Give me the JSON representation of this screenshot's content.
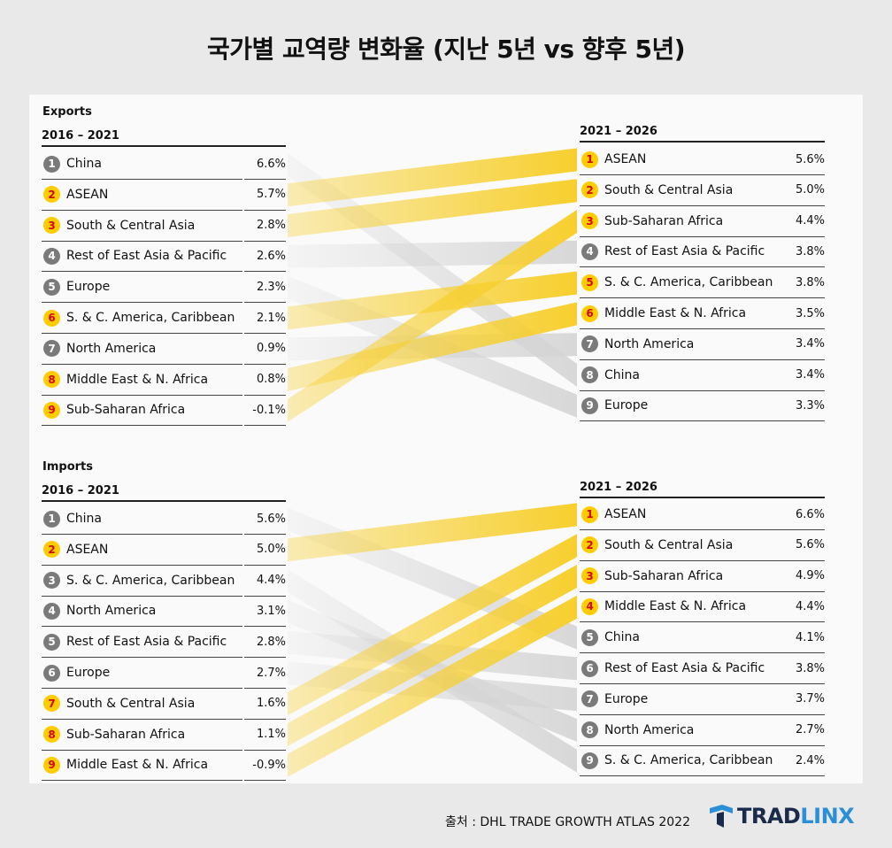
{
  "title": "국가별 교역량 변화율 (지난 5년 vs 향후 5년)",
  "source": "출처 : DHL TRADE GROWTH ATLAS 2022",
  "logo": {
    "part1": "TRAD",
    "part2": "LINX"
  },
  "colors": {
    "highlight": "#ffcc00",
    "highlight_text": "#d40511",
    "muted": "#7a7a7a",
    "band_yellow": "#f7cf2e",
    "band_gray": "#d4d4d4"
  },
  "chart_data": [
    {
      "type": "table",
      "section": "Exports",
      "left_header": "2016 – 2021",
      "right_header": "2021 – 2026",
      "left": [
        {
          "rank": "1",
          "name": "China",
          "value": "6.6%",
          "highlight": false
        },
        {
          "rank": "2",
          "name": "ASEAN",
          "value": "5.7%",
          "highlight": true
        },
        {
          "rank": "3",
          "name": "South & Central Asia",
          "value": "2.8%",
          "highlight": true
        },
        {
          "rank": "4",
          "name": "Rest of East Asia & Pacific",
          "value": "2.6%",
          "highlight": false
        },
        {
          "rank": "5",
          "name": "Europe",
          "value": "2.3%",
          "highlight": false
        },
        {
          "rank": "6",
          "name": "S. & C. America, Caribbean",
          "value": "2.1%",
          "highlight": true
        },
        {
          "rank": "7",
          "name": "North America",
          "value": "0.9%",
          "highlight": false
        },
        {
          "rank": "8",
          "name": "Middle East & N. Africa",
          "value": "0.8%",
          "highlight": true
        },
        {
          "rank": "9",
          "name": "Sub-Saharan Africa",
          "value": "-0.1%",
          "highlight": true
        }
      ],
      "right": [
        {
          "rank": "1",
          "name": "ASEAN",
          "value": "5.6%",
          "highlight": true
        },
        {
          "rank": "2",
          "name": "South & Central Asia",
          "value": "5.0%",
          "highlight": true
        },
        {
          "rank": "3",
          "name": "Sub-Saharan Africa",
          "value": "4.4%",
          "highlight": true
        },
        {
          "rank": "4",
          "name": "Rest of East Asia & Pacific",
          "value": "3.8%",
          "highlight": false
        },
        {
          "rank": "5",
          "name": "S. & C. America, Caribbean",
          "value": "3.8%",
          "highlight": true
        },
        {
          "rank": "6",
          "name": "Middle East & N. Africa",
          "value": "3.5%",
          "highlight": true
        },
        {
          "rank": "7",
          "name": "North America",
          "value": "3.4%",
          "highlight": false
        },
        {
          "rank": "8",
          "name": "China",
          "value": "3.4%",
          "highlight": false
        },
        {
          "rank": "9",
          "name": "Europe",
          "value": "3.3%",
          "highlight": false
        }
      ],
      "links": [
        [
          1,
          8
        ],
        [
          2,
          1
        ],
        [
          3,
          2
        ],
        [
          4,
          4
        ],
        [
          5,
          9
        ],
        [
          6,
          5
        ],
        [
          7,
          7
        ],
        [
          8,
          6
        ],
        [
          9,
          3
        ]
      ]
    },
    {
      "type": "table",
      "section": "Imports",
      "left_header": "2016 – 2021",
      "right_header": "2021 – 2026",
      "left": [
        {
          "rank": "1",
          "name": "China",
          "value": "5.6%",
          "highlight": false
        },
        {
          "rank": "2",
          "name": "ASEAN",
          "value": "5.0%",
          "highlight": true
        },
        {
          "rank": "3",
          "name": "S. & C. America, Caribbean",
          "value": "4.4%",
          "highlight": false
        },
        {
          "rank": "4",
          "name": "North America",
          "value": "3.1%",
          "highlight": false
        },
        {
          "rank": "5",
          "name": "Rest of East Asia & Pacific",
          "value": "2.8%",
          "highlight": false
        },
        {
          "rank": "6",
          "name": "Europe",
          "value": "2.7%",
          "highlight": false
        },
        {
          "rank": "7",
          "name": "South & Central Asia",
          "value": "1.6%",
          "highlight": true
        },
        {
          "rank": "8",
          "name": "Sub-Saharan Africa",
          "value": "1.1%",
          "highlight": true
        },
        {
          "rank": "9",
          "name": "Middle East & N. Africa",
          "value": "-0.9%",
          "highlight": true
        }
      ],
      "right": [
        {
          "rank": "1",
          "name": "ASEAN",
          "value": "6.6%",
          "highlight": true
        },
        {
          "rank": "2",
          "name": "South & Central Asia",
          "value": "5.6%",
          "highlight": true
        },
        {
          "rank": "3",
          "name": "Sub-Saharan Africa",
          "value": "4.9%",
          "highlight": true
        },
        {
          "rank": "4",
          "name": "Middle East & N. Africa",
          "value": "4.4%",
          "highlight": true
        },
        {
          "rank": "5",
          "name": "China",
          "value": "4.1%",
          "highlight": false
        },
        {
          "rank": "6",
          "name": "Rest of East Asia & Pacific",
          "value": "3.8%",
          "highlight": false
        },
        {
          "rank": "7",
          "name": "Europe",
          "value": "3.7%",
          "highlight": false
        },
        {
          "rank": "8",
          "name": "North America",
          "value": "2.7%",
          "highlight": false
        },
        {
          "rank": "9",
          "name": "S. & C. America, Caribbean",
          "value": "2.4%",
          "highlight": false
        }
      ],
      "links": [
        [
          1,
          5
        ],
        [
          2,
          1
        ],
        [
          3,
          9
        ],
        [
          4,
          8
        ],
        [
          5,
          6
        ],
        [
          6,
          7
        ],
        [
          7,
          2
        ],
        [
          8,
          3
        ],
        [
          9,
          4
        ]
      ]
    }
  ]
}
